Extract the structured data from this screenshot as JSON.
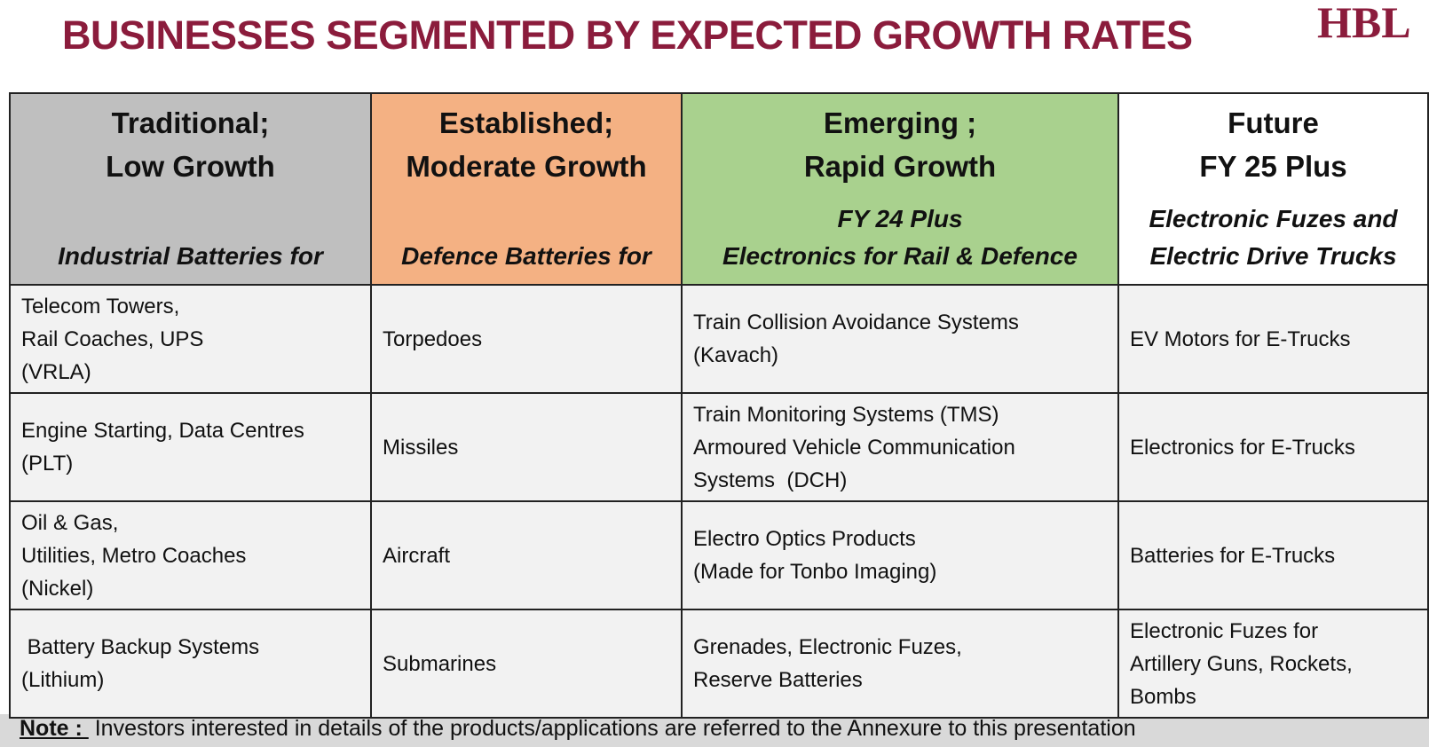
{
  "header": {
    "title": "BUSINESSES SEGMENTED BY EXPECTED GROWTH RATES",
    "logo": "HBL"
  },
  "table": {
    "columns": [
      {
        "title": [
          "Traditional;",
          "Low Growth"
        ],
        "subtitle": [
          "Industrial Batteries for"
        ]
      },
      {
        "title": [
          "Established;",
          "Moderate Growth"
        ],
        "subtitle": [
          "Defence Batteries for"
        ]
      },
      {
        "title": [
          "Emerging ;",
          "Rapid Growth"
        ],
        "subtitle": [
          "FY 24 Plus",
          "Electronics for  Rail & Defence"
        ]
      },
      {
        "title": [
          "Future",
          "FY 25 Plus"
        ],
        "subtitle": [
          "Electronic Fuzes and",
          "Electric Drive Trucks"
        ]
      }
    ],
    "rows": [
      [
        [
          "Telecom Towers,",
          "Rail Coaches, UPS",
          "(VRLA)"
        ],
        [
          "Torpedoes"
        ],
        [
          "Train Collision Avoidance Systems",
          "(Kavach)"
        ],
        [
          "EV Motors for E-Trucks"
        ]
      ],
      [
        [
          "Engine Starting, Data Centres",
          "(PLT)"
        ],
        [
          "Missiles"
        ],
        [
          "Train Monitoring Systems (TMS)",
          "Armoured Vehicle Communication",
          "Systems  (DCH)"
        ],
        [
          "Electronics for E-Trucks"
        ]
      ],
      [
        [
          "Oil & Gas,",
          "Utilities, Metro Coaches",
          "(Nickel)"
        ],
        [
          "Aircraft"
        ],
        [
          "Electro Optics Products",
          "(Made for Tonbo Imaging)"
        ],
        [
          "Batteries for E-Trucks"
        ]
      ],
      [
        [
          " Battery Backup Systems",
          "(Lithium)"
        ],
        [
          "Submarines"
        ],
        [
          "Grenades, Electronic Fuzes,",
          "Reserve Batteries"
        ],
        [
          "Electronic Fuzes for",
          "Artillery Guns, Rockets,",
          "Bombs"
        ]
      ]
    ]
  },
  "note": {
    "label": "Note : ",
    "text": " Investors interested in details of the products/applications are referred to the Annexure to this presentation"
  }
}
